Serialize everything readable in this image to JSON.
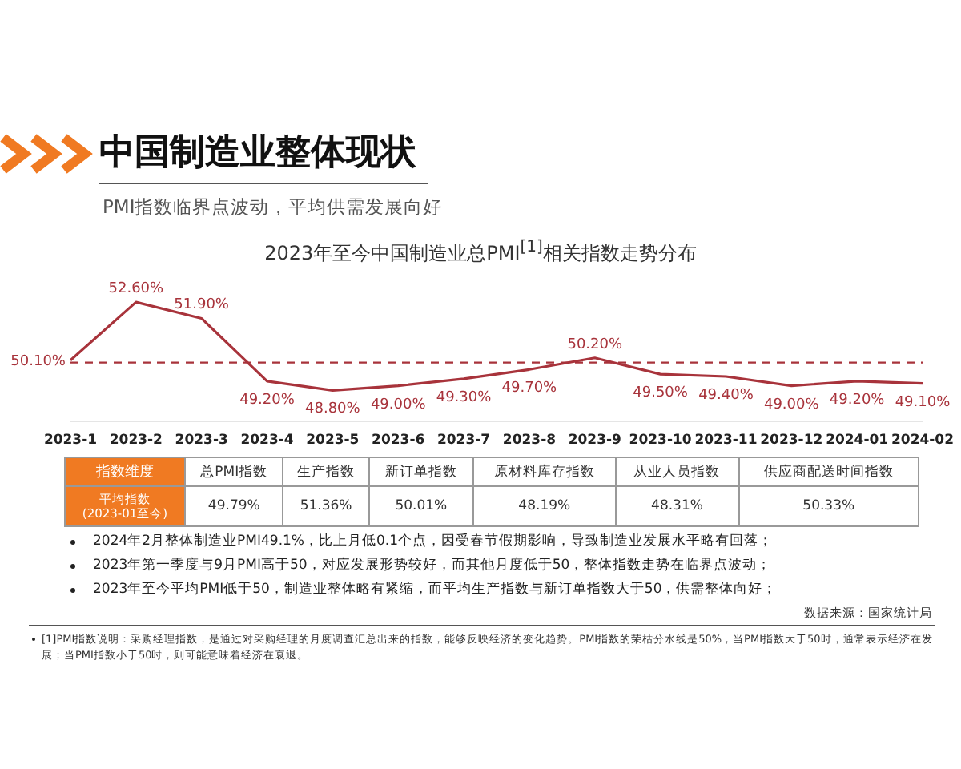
{
  "chart_data": [
    {
      "type": "other",
      "title": "中国制造业整体现状",
      "subtitle": "PMI指数临界点波动，平均供需发展向好"
    },
    {
      "type": "line",
      "title": "2023年至今中国制造业总PMI$^{[1]}$相关指数走势分布",
      "categories": [
        "2023-1",
        "2023-2",
        "2023-3",
        "2023-4",
        "2023-5",
        "2023-6",
        "2023-7",
        "2023-8",
        "2023-9",
        "2023-10",
        "2023-11",
        "2023-12",
        "2024-01",
        "2024-02"
      ],
      "series": [
        {
          "color": "#a8333b",
          "values": [
            50.1,
            52.6,
            51.9,
            49.2,
            48.8,
            49.0,
            49.3,
            49.7,
            50.2,
            49.5,
            49.4,
            49.0,
            49.2,
            49.1
          ],
          "value_labels": [
            "50.10%",
            "52.60%",
            "51.90%",
            "49.20%",
            "48.80%",
            "49.00%",
            "49.30%",
            "49.70%",
            "50.20%",
            "49.50%",
            "49.40%",
            "49.00%",
            "49.20%",
            "49.10%"
          ]
        }
      ],
      "ref_lines": [
        {
          "axis": "y",
          "value": 50,
          "color": "#a8333b",
          "line_style": "dashed"
        }
      ],
      "marker": "none",
      "line_style": "solid",
      "tick_labels": "x"
    },
    {
      "type": "other",
      "categories": [
        "总PMI指数",
        "生产指数",
        "新订单指数",
        "原材料库存指数",
        "从业人员指数",
        "供应商配送时间指数"
      ],
      "value_labels": [
        "49.79%",
        "51.36%",
        "50.01%",
        "48.19%",
        "48.31%",
        "50.33%"
      ],
      "annotations": [
        "指数维度",
        "平均指数\n(2023-01至今)"
      ]
    },
    {
      "type": "other",
      "annotations": [
        "2024年2月整体制造业PMI49.1%，比上月低0.1个点，因受春节假期影响，导致制造业发展水平略有回落；",
        "2023年第一季度与9月PMI高于50，对应发展形势较好，而其他月度低于50，整体指数走势在临界点波动；",
        "2023年至今平均PMI低于50，制造业整体略有紧缩，而平均生产指数与新订单指数大于50，供需整体向好；",
        "数据来源：国家统计局",
        "[1]PMI指数说明：采购经理指数，是通过对采购经理的月度调查汇总出来的指数，能够反映经济的变化趋势。PMI指数的荣枯分水线是50%，当PMI指数大于50时，通常表示经济在发展；当PMI指数小于50时，则可能意味着经济在衰退。"
      ]
    }
  ]
}
